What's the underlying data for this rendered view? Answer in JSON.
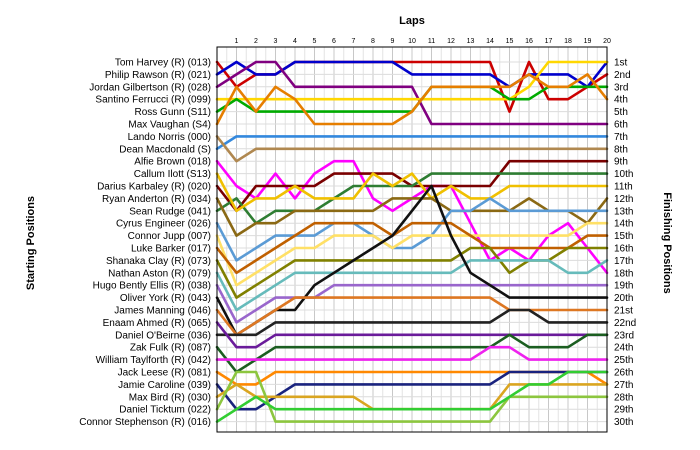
{
  "chart_data": {
    "type": "line",
    "title": "Laps",
    "ylabel_left": "Starting Positions",
    "ylabel_right": "Finishing Positions",
    "x": [
      0,
      1,
      2,
      3,
      4,
      5,
      6,
      7,
      8,
      9,
      10,
      11,
      12,
      13,
      14,
      15,
      16,
      17,
      18,
      19,
      20
    ],
    "x_tick_labels": [
      "1",
      "2",
      "3",
      "4",
      "5",
      "6",
      "7",
      "8",
      "9",
      "10",
      "11",
      "12",
      "13",
      "14",
      "15",
      "16",
      "17",
      "18",
      "19",
      "20"
    ],
    "ylim": [
      1,
      30
    ],
    "grid": true,
    "starting_labels": [
      "Tom Harvey (R) (013)",
      "Philip Rawson (R) (021)",
      "Jordan Gilbertson (R) (028)",
      "Santino Ferrucci (R) (099)",
      "Ross Gunn (S11)",
      "Max Vaughan (S4)",
      "Lando Norris (000)",
      "Dean Macdonald (S)",
      "Alfie Brown (018)",
      "Callum Ilott (S13)",
      "Darius Karbaley (R) (020)",
      "Ryan Anderton (R) (034)",
      "Sean Rudge (041)",
      "Cyrus Engineer (026)",
      "Connor Jupp (007)",
      "Luke Barker (017)",
      "Shanaka Clay (R) (073)",
      "Nathan Aston (R) (079)",
      "Hugo Bently Ellis (R) (038)",
      "Oliver York (R) (043)",
      "James Manning (046)",
      "Enaam Ahmed (R) (065)",
      "Daniel O'Beirne (036)",
      "Zak Fulk (R) (087)",
      "William Taylforth (R) (042)",
      "Jack Leese (R) (081)",
      "Jamie Caroline (039)",
      "Max Bird  (R) (030)",
      "Daniel Ticktum (022)",
      "Connor Stephenson (R) (016)"
    ],
    "finishing_labels": [
      "1st",
      "2nd",
      "3rd",
      "4th",
      "5th",
      "6th",
      "7th",
      "8th",
      "9th",
      "10th",
      "11th",
      "12th",
      "13th",
      "14th",
      "15th",
      "16th",
      "17th",
      "18th",
      "19th",
      "20th",
      "21st",
      "22nd",
      "23rd",
      "24th",
      "25th",
      "26th",
      "27th",
      "28th",
      "29th",
      "30th"
    ],
    "series": [
      {
        "color": "#cc0000",
        "values": [
          1,
          3,
          2,
          2,
          1,
          1,
          1,
          1,
          1,
          1,
          1,
          1,
          1,
          1,
          1,
          5,
          1,
          4,
          4,
          3,
          2
        ]
      },
      {
        "color": "#0000cc",
        "values": [
          2,
          1,
          2,
          2,
          1,
          1,
          1,
          1,
          1,
          1,
          2,
          2,
          2,
          2,
          2,
          3,
          2,
          2,
          2,
          3,
          1
        ]
      },
      {
        "color": "#800080",
        "values": [
          3,
          2,
          1,
          1,
          3,
          3,
          3,
          3,
          3,
          3,
          3,
          6,
          6,
          6,
          6,
          6,
          6,
          6,
          6,
          6,
          6
        ]
      },
      {
        "color": "#ffd700",
        "values": [
          4,
          4,
          4,
          4,
          4,
          4,
          4,
          4,
          4,
          4,
          4,
          4,
          4,
          4,
          4,
          4,
          3,
          1,
          1,
          1,
          1
        ]
      },
      {
        "color": "#00aa00",
        "values": [
          5,
          4,
          5,
          5,
          5,
          5,
          5,
          5,
          5,
          5,
          5,
          3,
          3,
          3,
          3,
          4,
          4,
          3,
          3,
          3,
          3
        ]
      },
      {
        "color": "#e67e00",
        "values": [
          6,
          3,
          5,
          3,
          4,
          6,
          6,
          6,
          6,
          6,
          5,
          3,
          3,
          3,
          3,
          3,
          2,
          3,
          3,
          2,
          4
        ]
      },
      {
        "color": "#3388dd",
        "values": [
          8,
          7,
          7,
          7,
          7,
          7,
          7,
          7,
          7,
          7,
          7,
          7,
          7,
          7,
          7,
          7,
          7,
          7,
          7,
          7,
          7
        ]
      },
      {
        "color": "#b08850",
        "values": [
          7,
          9,
          8,
          8,
          8,
          8,
          8,
          8,
          8,
          8,
          8,
          8,
          8,
          8,
          8,
          8,
          8,
          8,
          8,
          8,
          8
        ]
      },
      {
        "color": "#ff00ff",
        "values": [
          9,
          11,
          12,
          10,
          12,
          10,
          9,
          9,
          12,
          13,
          12,
          11,
          11,
          14,
          17,
          16,
          17,
          15,
          14,
          16,
          18
        ]
      },
      {
        "color": "#7a0000",
        "values": [
          11,
          13,
          11,
          11,
          11,
          11,
          10,
          10,
          10,
          10,
          11,
          11,
          11,
          11,
          11,
          9,
          9,
          9,
          9,
          9,
          9
        ]
      },
      {
        "color": "#2e7d32",
        "values": [
          13,
          12,
          14,
          13,
          13,
          13,
          12,
          11,
          11,
          11,
          11,
          10,
          10,
          10,
          10,
          10,
          10,
          10,
          10,
          10,
          10
        ]
      },
      {
        "color": "#f0c000",
        "values": [
          10,
          13,
          12,
          12,
          11,
          12,
          12,
          12,
          10,
          11,
          10,
          12,
          11,
          12,
          12,
          11,
          11,
          11,
          11,
          11,
          11
        ]
      },
      {
        "color": "#8b6914",
        "values": [
          12,
          15,
          14,
          14,
          13,
          13,
          13,
          13,
          13,
          12,
          12,
          12,
          13,
          13,
          13,
          13,
          12,
          13,
          13,
          14,
          12
        ]
      },
      {
        "color": "#5b9bd5",
        "values": [
          14,
          17,
          16,
          15,
          15,
          15,
          14,
          14,
          15,
          16,
          16,
          15,
          13,
          13,
          12,
          13,
          13,
          13,
          13,
          13,
          13
        ]
      },
      {
        "color": "#ffe066",
        "values": [
          15,
          19,
          18,
          17,
          16,
          16,
          15,
          15,
          15,
          16,
          15,
          15,
          15,
          15,
          15,
          15,
          15,
          15,
          15,
          14,
          14
        ]
      },
      {
        "color": "#c06000",
        "values": [
          16,
          18,
          17,
          16,
          15,
          14,
          14,
          14,
          14,
          15,
          14,
          14,
          14,
          15,
          16,
          16,
          16,
          16,
          16,
          15,
          15
        ]
      },
      {
        "color": "#808000",
        "values": [
          17,
          20,
          19,
          18,
          17,
          17,
          17,
          17,
          17,
          17,
          17,
          17,
          17,
          16,
          16,
          18,
          17,
          17,
          16,
          16,
          16
        ]
      },
      {
        "color": "#66bbbb",
        "values": [
          18,
          21,
          20,
          19,
          18,
          18,
          18,
          18,
          18,
          18,
          18,
          18,
          18,
          17,
          17,
          17,
          17,
          17,
          18,
          18,
          17
        ]
      },
      {
        "color": "#9966cc",
        "values": [
          19,
          22,
          21,
          20,
          20,
          20,
          19,
          19,
          19,
          19,
          19,
          19,
          19,
          19,
          19,
          19,
          19,
          19,
          19,
          19,
          19
        ]
      },
      {
        "color": "#111111",
        "values": [
          20,
          23,
          22,
          21,
          21,
          19,
          18,
          17,
          16,
          15,
          13,
          11,
          15,
          18,
          19,
          20,
          20,
          20,
          20,
          20,
          20
        ]
      },
      {
        "color": "#dd7722",
        "values": [
          21,
          23,
          22,
          21,
          20,
          20,
          20,
          20,
          20,
          20,
          20,
          20,
          20,
          20,
          20,
          21,
          21,
          21,
          21,
          21,
          21
        ]
      },
      {
        "color": "#222222",
        "values": [
          23,
          23,
          23,
          22,
          22,
          22,
          22,
          22,
          22,
          22,
          22,
          22,
          22,
          22,
          22,
          21,
          21,
          22,
          22,
          22,
          22
        ]
      },
      {
        "color": "#6a1b9a",
        "values": [
          22,
          24,
          24,
          23,
          23,
          23,
          23,
          23,
          23,
          23,
          23,
          23,
          23,
          23,
          23,
          23,
          23,
          23,
          23,
          23,
          23
        ]
      },
      {
        "color": "#1b5e20",
        "values": [
          24,
          26,
          25,
          24,
          24,
          24,
          24,
          24,
          24,
          24,
          24,
          24,
          24,
          24,
          24,
          23,
          24,
          24,
          24,
          23,
          23
        ]
      },
      {
        "color": "#ee22ee",
        "values": [
          25,
          25,
          25,
          25,
          25,
          25,
          25,
          25,
          25,
          25,
          25,
          25,
          25,
          25,
          24,
          24,
          25,
          25,
          25,
          25,
          25
        ]
      },
      {
        "color": "#ff8800",
        "values": [
          26,
          27,
          27,
          26,
          26,
          26,
          26,
          26,
          26,
          26,
          26,
          26,
          26,
          26,
          26,
          26,
          26,
          26,
          26,
          26,
          27
        ]
      },
      {
        "color": "#1a237e",
        "values": [
          27,
          29,
          29,
          28,
          27,
          27,
          27,
          27,
          27,
          27,
          27,
          27,
          27,
          27,
          27,
          26,
          26,
          26,
          26,
          26,
          26
        ]
      },
      {
        "color": "#daa520",
        "values": [
          28,
          27,
          28,
          28,
          28,
          28,
          28,
          28,
          29,
          29,
          29,
          29,
          29,
          29,
          29,
          27,
          27,
          27,
          27,
          27,
          27
        ]
      },
      {
        "color": "#8cc63f",
        "values": [
          29,
          26,
          26,
          30,
          30,
          30,
          30,
          30,
          30,
          30,
          30,
          30,
          30,
          30,
          30,
          28,
          28,
          28,
          28,
          28,
          28
        ]
      },
      {
        "color": "#32cd32",
        "values": [
          30,
          29,
          28,
          29,
          29,
          29,
          29,
          29,
          29,
          29,
          29,
          29,
          29,
          29,
          29,
          28,
          27,
          27,
          26,
          26,
          26
        ]
      }
    ]
  }
}
